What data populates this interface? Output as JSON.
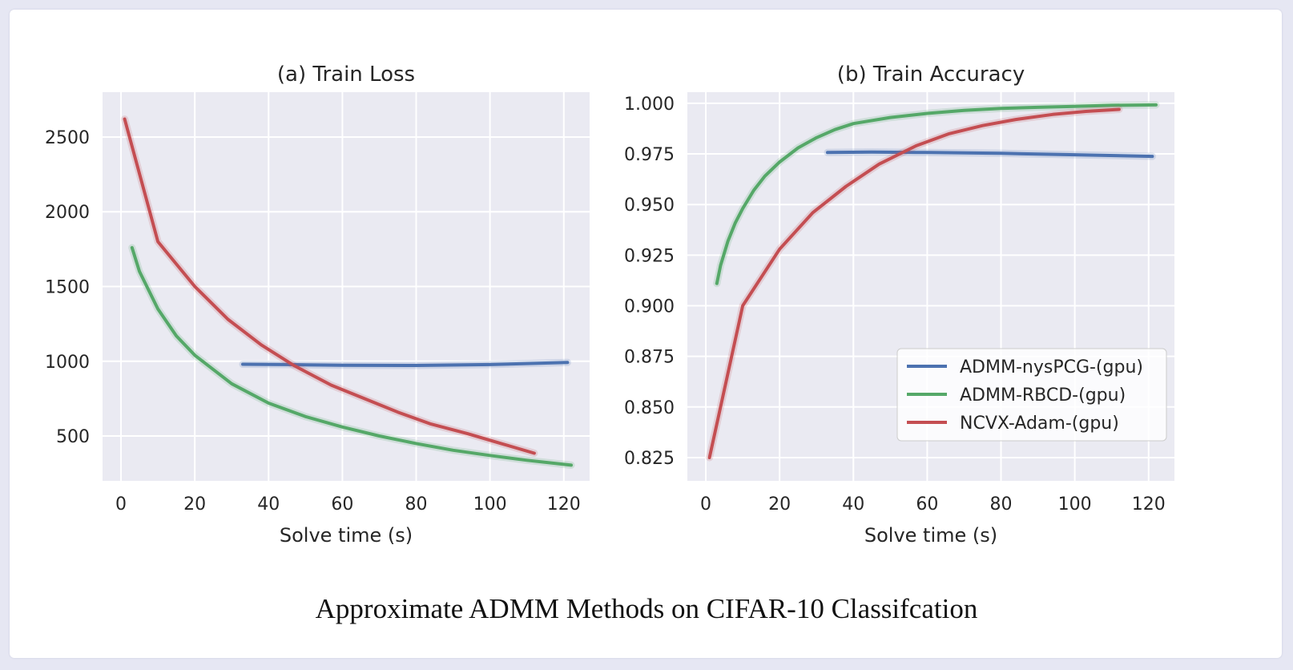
{
  "caption": "Approximate ADMM Methods on CIFAR-10 Classifcation",
  "colors": {
    "background": "#eaeaf2",
    "grid": "#ffffff",
    "ADMM-nysPCG-(gpu)": "#4c72b0",
    "ADMM-RBCD-(gpu)": "#55a868",
    "NCVX-Adam-(gpu)": "#c44e52"
  },
  "chart_data": [
    {
      "type": "line",
      "title": "(a) Train Loss",
      "xlabel": "Solve time (s)",
      "ylabel": "",
      "xlim": [
        -5,
        127
      ],
      "ylim": [
        200,
        2800
      ],
      "xticks": [
        0,
        20,
        40,
        60,
        80,
        100,
        120
      ],
      "yticks": [
        500,
        1000,
        1500,
        2000,
        2500
      ],
      "grid": true,
      "legend": "none",
      "series": [
        {
          "name": "ADMM-nysPCG-(gpu)",
          "x": [
            33,
            45,
            60,
            80,
            100,
            121
          ],
          "y": [
            980,
            978,
            973,
            972,
            978,
            992
          ]
        },
        {
          "name": "ADMM-RBCD-(gpu)",
          "x": [
            3,
            5,
            10,
            15,
            20,
            30,
            40,
            50,
            60,
            70,
            80,
            90,
            100,
            110,
            122
          ],
          "y": [
            1760,
            1600,
            1350,
            1170,
            1040,
            850,
            720,
            630,
            560,
            500,
            450,
            405,
            370,
            338,
            305
          ]
        },
        {
          "name": "NCVX-Adam-(gpu)",
          "x": [
            1,
            10,
            20,
            29,
            38,
            47,
            57,
            66,
            75,
            84,
            94,
            103,
            112
          ],
          "y": [
            2620,
            1800,
            1500,
            1280,
            1110,
            970,
            840,
            750,
            660,
            580,
            515,
            450,
            385
          ]
        }
      ]
    },
    {
      "type": "line",
      "title": "(b) Train Accuracy",
      "xlabel": "Solve time (s)",
      "ylabel": "",
      "xlim": [
        -5,
        127
      ],
      "ylim": [
        0.8135,
        1.0055
      ],
      "xticks": [
        0,
        20,
        40,
        60,
        80,
        100,
        120
      ],
      "yticks": [
        0.825,
        0.85,
        0.875,
        0.9,
        0.925,
        0.95,
        0.975,
        1.0
      ],
      "ytick_labels": [
        "0.825",
        "0.850",
        "0.875",
        "0.900",
        "0.925",
        "0.950",
        "0.975",
        "1.000"
      ],
      "grid": true,
      "legend": "lower right",
      "series": [
        {
          "name": "ADMM-nysPCG-(gpu)",
          "x": [
            33,
            45,
            60,
            80,
            100,
            121
          ],
          "y": [
            0.9757,
            0.9759,
            0.9757,
            0.9753,
            0.9746,
            0.9738
          ]
        },
        {
          "name": "ADMM-RBCD-(gpu)",
          "x": [
            3,
            4,
            6,
            8,
            10,
            13,
            16,
            20,
            25,
            30,
            35,
            40,
            50,
            60,
            70,
            80,
            90,
            100,
            110,
            122
          ],
          "y": [
            0.911,
            0.92,
            0.932,
            0.941,
            0.948,
            0.957,
            0.964,
            0.971,
            0.978,
            0.983,
            0.987,
            0.99,
            0.993,
            0.995,
            0.9965,
            0.9975,
            0.998,
            0.9985,
            0.999,
            0.9992
          ]
        },
        {
          "name": "NCVX-Adam-(gpu)",
          "x": [
            1,
            10,
            20,
            29,
            38,
            47,
            57,
            66,
            75,
            84,
            94,
            103,
            112
          ],
          "y": [
            0.825,
            0.9,
            0.928,
            0.946,
            0.959,
            0.97,
            0.979,
            0.985,
            0.989,
            0.992,
            0.9945,
            0.996,
            0.997
          ]
        }
      ]
    }
  ]
}
